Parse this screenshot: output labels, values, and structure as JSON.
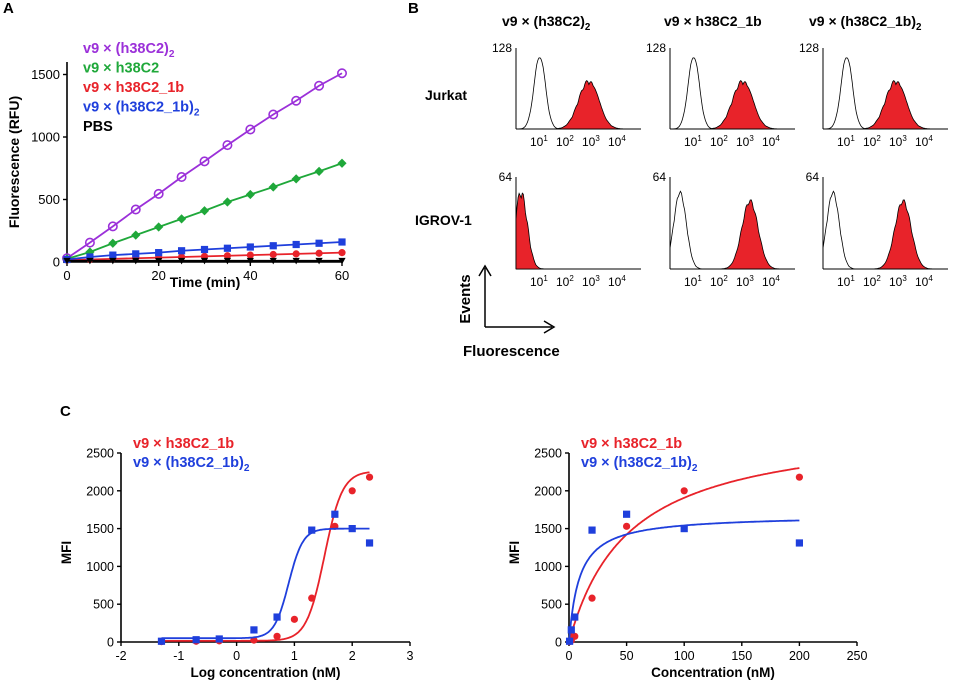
{
  "panel_labels": {
    "a": "A",
    "b": "B",
    "c": "C"
  },
  "colors": {
    "purple": "#9b30d9",
    "green": "#1fa83a",
    "red": "#e8232a",
    "blue": "#1f3fdc",
    "black": "#000000"
  },
  "chart_data": [
    {
      "id": "A",
      "type": "line",
      "xlabel": "Time  (min)",
      "ylabel": "Fluorescence (RFU)",
      "xlim": [
        0,
        60
      ],
      "ylim": [
        0,
        1600
      ],
      "xticks": [
        0,
        20,
        40,
        60
      ],
      "yticks": [
        0,
        500,
        1000,
        1500
      ],
      "x": [
        0,
        5,
        10,
        15,
        20,
        25,
        30,
        35,
        40,
        45,
        50,
        55,
        60
      ],
      "series": [
        {
          "name": "v9 × (h38C2)",
          "sub": "2",
          "color": "#9b30d9",
          "marker": "circle-open",
          "values": [
            30,
            155,
            285,
            420,
            545,
            680,
            805,
            935,
            1060,
            1180,
            1290,
            1410,
            1510
          ]
        },
        {
          "name": "v9 × h38C2",
          "sub": "",
          "color": "#1fa83a",
          "marker": "diamond",
          "values": [
            25,
            80,
            150,
            215,
            280,
            345,
            410,
            480,
            540,
            600,
            665,
            725,
            790
          ]
        },
        {
          "name": "v9 × h38C2_1b",
          "sub": "",
          "color": "#e8232a",
          "marker": "circle",
          "values": [
            15,
            20,
            25,
            30,
            35,
            40,
            45,
            50,
            55,
            60,
            65,
            70,
            75
          ]
        },
        {
          "name": "v9 × (h38C2_1b)",
          "sub": "2",
          "color": "#1f3fdc",
          "marker": "square",
          "values": [
            20,
            40,
            55,
            65,
            75,
            90,
            100,
            110,
            120,
            130,
            140,
            150,
            160
          ]
        },
        {
          "name": "PBS",
          "sub": "",
          "color": "#000000",
          "marker": "triangle-down",
          "values": [
            10,
            10,
            10,
            10,
            10,
            10,
            10,
            10,
            10,
            10,
            10,
            10,
            10
          ]
        }
      ]
    },
    {
      "id": "B",
      "type": "histogram",
      "columns": [
        {
          "name": "v9 × (h38C2)",
          "sub": "2"
        },
        {
          "name": "v9 × h38C2_1b",
          "sub": ""
        },
        {
          "name": "v9 × (h38C2_1b)",
          "sub": "2"
        }
      ],
      "rows": [
        {
          "name": "Jurkat",
          "ymax": "128",
          "xticks": [
            "10",
            "10",
            "10",
            "10"
          ],
          "xtick_exps": [
            "1",
            "2",
            "3",
            "4"
          ]
        },
        {
          "name": "IGROV-1",
          "ymax": "64",
          "xticks": [
            "10",
            "10",
            "10",
            "10"
          ],
          "xtick_exps": [
            "1",
            "2",
            "3",
            "4"
          ]
        }
      ],
      "y_axis_label": "Events",
      "x_axis_label": "Fluorescence",
      "xscale": "log",
      "xlim": [
        1,
        10000
      ]
    },
    {
      "id": "C-left",
      "type": "scatter",
      "xlabel": "Log concentration (nM)",
      "ylabel": "MFI",
      "xlim": [
        -2,
        3
      ],
      "ylim": [
        0,
        2500
      ],
      "xticks": [
        -2,
        -1,
        0,
        1,
        2,
        3
      ],
      "yticks": [
        0,
        500,
        1000,
        1500,
        2000,
        2500
      ],
      "series": [
        {
          "name": "v9 × h38C2_1b",
          "sub": "",
          "color": "#e8232a",
          "marker": "circle",
          "x": [
            -1.3,
            -0.7,
            -0.3,
            0.3,
            0.7,
            1.0,
            1.3,
            1.7,
            2.0,
            2.3
          ],
          "values": [
            5,
            10,
            15,
            25,
            75,
            300,
            580,
            1530,
            2000,
            2180
          ],
          "fit": {
            "model": "sigmoid",
            "bottom": 15,
            "top": 2260,
            "ec50_log": 1.52,
            "hill": 2.8
          }
        },
        {
          "name": "v9 × (h38C2_1b)",
          "sub": "2",
          "color": "#1f3fdc",
          "marker": "square",
          "x": [
            -1.3,
            -0.7,
            -0.3,
            0.3,
            0.7,
            1.3,
            1.7,
            2.0,
            2.3
          ],
          "values": [
            10,
            30,
            40,
            160,
            330,
            1480,
            1690,
            1500,
            1310
          ],
          "fit": {
            "model": "sigmoid",
            "bottom": 50,
            "top": 1500,
            "ec50_log": 0.9,
            "hill": 3.5
          }
        }
      ]
    },
    {
      "id": "C-right",
      "type": "scatter",
      "xlabel": "Concentration (nM)",
      "ylabel": "MFI",
      "xlim": [
        0,
        250
      ],
      "ylim": [
        0,
        2500
      ],
      "xticks": [
        0,
        50,
        100,
        150,
        200,
        250
      ],
      "yticks": [
        0,
        500,
        1000,
        1500,
        2000,
        2500
      ],
      "series": [
        {
          "name": "v9 × h38C2_1b",
          "sub": "",
          "color": "#e8232a",
          "marker": "circle",
          "x": [
            0.5,
            2,
            5,
            20,
            50,
            100,
            200
          ],
          "values": [
            5,
            20,
            75,
            580,
            1530,
            2000,
            2180
          ],
          "fit": {
            "model": "hyperbola",
            "bmax": 2900,
            "kd": 52
          }
        },
        {
          "name": "v9 × (h38C2_1b)",
          "sub": "2",
          "color": "#1f3fdc",
          "marker": "square",
          "x": [
            0.5,
            2,
            5,
            20,
            50,
            100,
            200
          ],
          "values": [
            10,
            160,
            330,
            1480,
            1690,
            1500,
            1310
          ],
          "fit": {
            "model": "hyperbola",
            "bmax": 1680,
            "kd": 9
          }
        }
      ]
    }
  ]
}
